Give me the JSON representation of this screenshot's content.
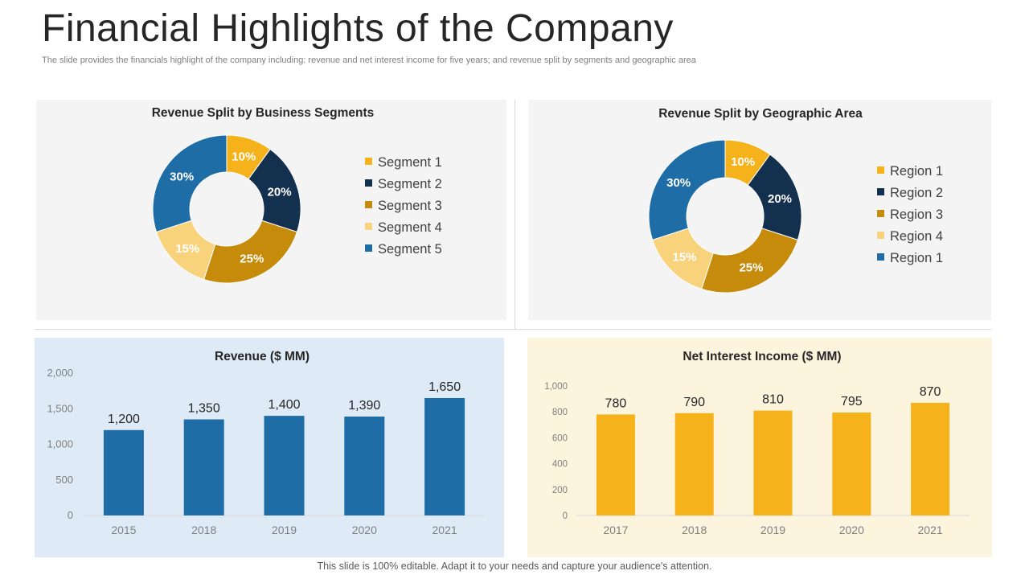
{
  "header": {
    "title": "Financial Highlights of the Company",
    "subtitle": "The slide provides the financials highlight of the company including: revenue and net interest income for five years; and revenue split by segments and geographic area"
  },
  "footer": "This slide is 100% editable. Adapt it to your needs and capture your audience's attention.",
  "colors": {
    "segment_1": "#f5b21b",
    "segment_2": "#14304f",
    "segment_3": "#c78b0c",
    "segment_4": "#f9d27c",
    "segment_5": "#1f6da6",
    "revenue_bar": "#1f6da6",
    "nii_bar": "#f5b21b",
    "panel_gray": "#f4f4f4",
    "panel_blue": "#deebf7",
    "panel_cream": "#fdf4de"
  },
  "chart_data": [
    {
      "type": "pie",
      "title": "Revenue Split by Business Segments",
      "donut": true,
      "categories": [
        "Segment 1",
        "Segment 2",
        "Segment 3",
        "Segment 4",
        "Segment 5"
      ],
      "values": [
        10,
        20,
        25,
        15,
        30
      ],
      "labels": [
        "10%",
        "20%",
        "25%",
        "15%",
        "30%"
      ],
      "legend": "right"
    },
    {
      "type": "pie",
      "title": "Revenue Split by Geographic Area",
      "donut": true,
      "categories": [
        "Region 1",
        "Region 2",
        "Region 3",
        "Region 4",
        "Region 1"
      ],
      "values": [
        10,
        20,
        25,
        15,
        30
      ],
      "labels": [
        "10%",
        "20%",
        "25%",
        "15%",
        "30%"
      ],
      "legend": "right"
    },
    {
      "type": "bar",
      "title": "Revenue ($ MM)",
      "categories": [
        "2015",
        "2018",
        "2019",
        "2020",
        "2021"
      ],
      "values": [
        1200,
        1350,
        1400,
        1390,
        1650
      ],
      "value_labels": [
        "1,200",
        "1,350",
        "1,400",
        "1,390",
        "1,650"
      ],
      "ylim": [
        0,
        2000
      ],
      "yticks": [
        0,
        500,
        1000,
        1500,
        2000
      ],
      "ytick_labels": [
        "0",
        "500",
        "1,000",
        "1,500",
        "2,000"
      ],
      "grid": false
    },
    {
      "type": "bar",
      "title": "Net Interest  Income ($ MM)",
      "categories": [
        "2017",
        "2018",
        "2019",
        "2020",
        "2021"
      ],
      "values": [
        780,
        790,
        810,
        795,
        870
      ],
      "value_labels": [
        "780",
        "790",
        "810",
        "795",
        "870"
      ],
      "ylim": [
        0,
        1000
      ],
      "yticks": [
        0,
        200,
        400,
        600,
        800,
        1000
      ],
      "ytick_labels": [
        "0",
        "200",
        "400",
        "600",
        "800",
        "1,000"
      ],
      "grid": false
    }
  ]
}
